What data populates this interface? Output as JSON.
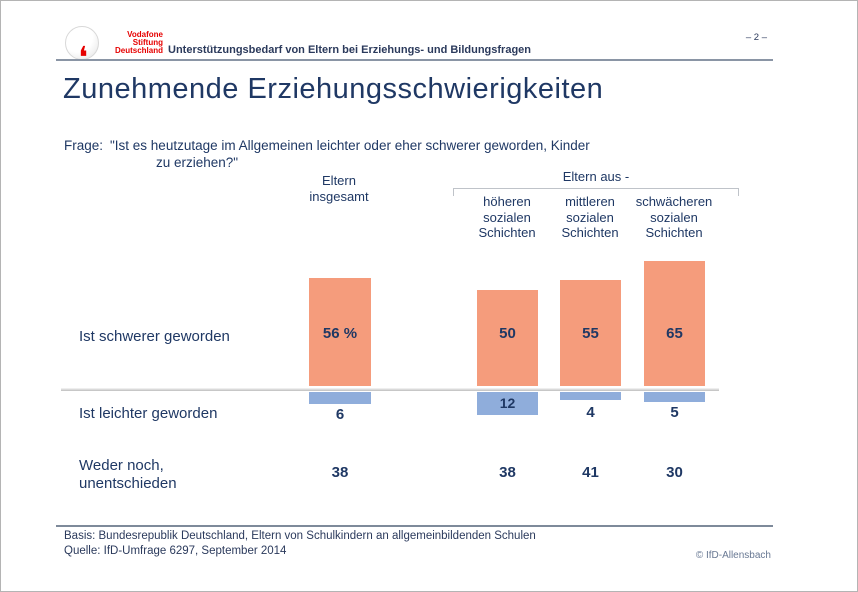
{
  "page_number": "– 2 –",
  "header": {
    "logo_lines": "Vodafone\nStiftung\nDeutschland",
    "subtitle": "Unterstützungsbedarf von Eltern bei Erziehungs- und Bildungsfragen"
  },
  "title": "Zunehmende Erziehungsschwierigkeiten",
  "question": {
    "label": "Frage:",
    "line1": "\"Ist es heutzutage im Allgemeinen leichter oder eher schwerer geworden, Kinder",
    "line2": "zu erziehen?\""
  },
  "columns": {
    "total_header": "Eltern\ninsgesamt",
    "group_header": "Eltern aus -",
    "subheaders": [
      "höheren\nsozialen\nSchichten",
      "mittleren\nsozialen\nSchichten",
      "schwächeren\nsozialen\nSchichten"
    ]
  },
  "row_label_display": [
    "Ist schwerer geworden",
    "Ist leichter geworden",
    "Weder noch,\nunentschieden"
  ],
  "chart_data": {
    "type": "bar",
    "unit": "percent",
    "categories": [
      "Eltern insgesamt",
      "Eltern aus höheren sozialen Schichten",
      "Eltern aus mittleren sozialen Schichten",
      "Eltern aus schwächeren sozialen Schichten"
    ],
    "series": [
      {
        "name": "Ist schwerer geworden",
        "values": [
          56,
          50,
          55,
          65
        ],
        "labels": [
          "56 %",
          "50",
          "55",
          "65"
        ],
        "color": "#F59C7C",
        "direction": "up"
      },
      {
        "name": "Ist leichter geworden",
        "values": [
          6,
          12,
          4,
          5
        ],
        "labels": [
          "6",
          "12",
          "4",
          "5"
        ],
        "color": "#8FADDB",
        "direction": "down"
      },
      {
        "name": "Weder noch, unentschieden",
        "values": [
          38,
          38,
          41,
          30
        ],
        "labels": [
          "38",
          "38",
          "41",
          "30"
        ],
        "color": null,
        "direction": "text-only"
      }
    ],
    "legend_position": "left-row-labels",
    "grid": false
  },
  "colors": {
    "accent_red": "#E60000",
    "bar_orange": "#F59C7C",
    "bar_blue": "#8FADDB",
    "text_navy": "#1F3864"
  },
  "footer": {
    "basis": "Basis: Bundesrepublik Deutschland, Eltern von Schulkindern an allgemeinbildenden Schulen",
    "quelle": "Quelle: IfD-Umfrage 6297, September 2014",
    "copyright": "© IfD-Allensbach"
  }
}
